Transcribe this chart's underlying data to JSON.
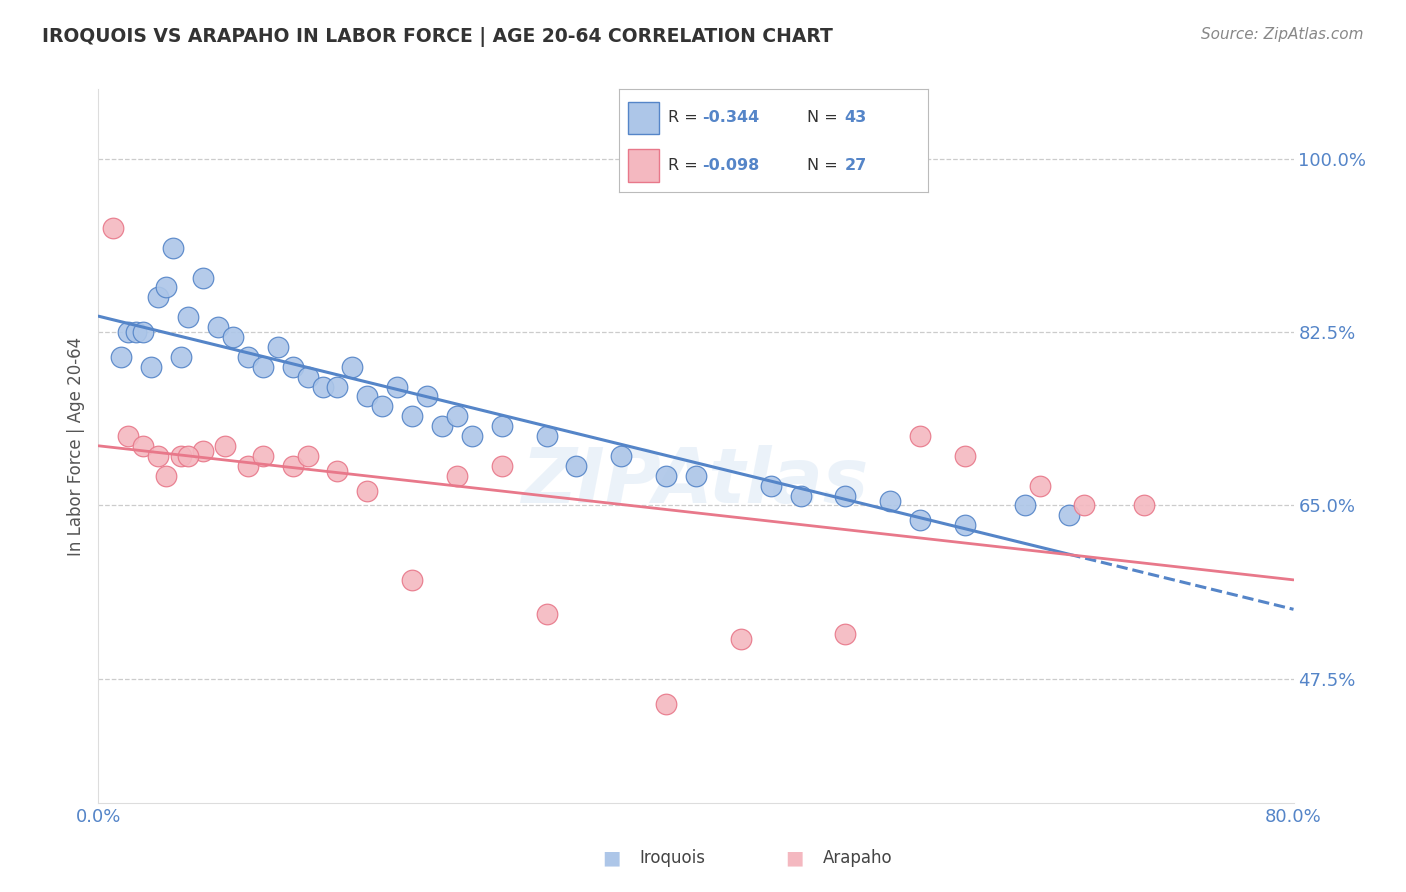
{
  "title": "IROQUOIS VS ARAPAHO IN LABOR FORCE | AGE 20-64 CORRELATION CHART",
  "source": "Source: ZipAtlas.com",
  "xlim": [
    0.0,
    80.0
  ],
  "ylim": [
    35.0,
    107.0
  ],
  "ylabel": "In Labor Force | Age 20-64",
  "iroquois_color": "#adc6e8",
  "arapaho_color": "#f4b8c0",
  "regression_blue": "#5585c8",
  "regression_pink": "#e8788a",
  "legend_R_blue": "-0.344",
  "legend_N_blue": "43",
  "legend_R_pink": "-0.098",
  "legend_N_pink": "27",
  "watermark": "ZIPAtlas",
  "gridline_y": [
    47.5,
    65.0,
    82.5,
    100.0
  ],
  "axis_label_color": "#5585c8",
  "title_color": "#333333",
  "source_color": "#888888",
  "background_color": "#ffffff",
  "iroquois_x": [
    1.5,
    2.0,
    2.5,
    3.0,
    3.5,
    4.0,
    4.5,
    5.0,
    5.5,
    6.0,
    7.0,
    8.0,
    9.0,
    10.0,
    11.0,
    12.0,
    13.0,
    14.0,
    15.0,
    16.0,
    17.0,
    18.0,
    19.0,
    20.0,
    21.0,
    22.0,
    23.0,
    24.0,
    25.0,
    27.0,
    30.0,
    32.0,
    35.0,
    38.0,
    40.0,
    45.0,
    47.0,
    50.0,
    53.0,
    55.0,
    58.0,
    62.0,
    65.0
  ],
  "iroquois_y": [
    80.0,
    82.5,
    82.5,
    82.5,
    79.0,
    86.0,
    87.0,
    91.0,
    80.0,
    84.0,
    88.0,
    83.0,
    82.0,
    80.0,
    79.0,
    81.0,
    79.0,
    78.0,
    77.0,
    77.0,
    79.0,
    76.0,
    75.0,
    77.0,
    74.0,
    76.0,
    73.0,
    74.0,
    72.0,
    73.0,
    72.0,
    69.0,
    70.0,
    68.0,
    68.0,
    67.0,
    66.0,
    66.0,
    65.5,
    63.5,
    63.0,
    65.0,
    64.0
  ],
  "arapaho_x": [
    1.0,
    2.0,
    3.0,
    4.5,
    5.5,
    7.0,
    8.5,
    10.0,
    11.0,
    13.0,
    14.0,
    16.0,
    18.0,
    21.0,
    24.0,
    27.0,
    30.0,
    55.0,
    58.0,
    63.0,
    66.0,
    70.0,
    38.0,
    43.0,
    50.0,
    4.0,
    6.0
  ],
  "arapaho_y": [
    93.0,
    72.0,
    71.0,
    68.0,
    70.0,
    70.5,
    71.0,
    69.0,
    70.0,
    69.0,
    70.0,
    68.5,
    66.5,
    57.5,
    68.0,
    69.0,
    54.0,
    72.0,
    70.0,
    67.0,
    65.0,
    65.0,
    45.0,
    51.5,
    52.0,
    70.0,
    70.0
  ]
}
